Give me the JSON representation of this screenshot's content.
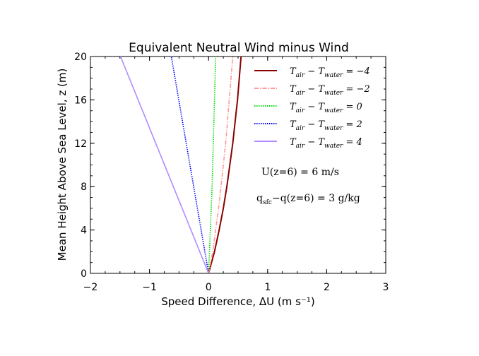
{
  "chart_data": {
    "type": "line",
    "title": "Equivalent Neutral Wind minus Wind",
    "xlabel": "Speed Difference, ΔU  (m s⁻¹)",
    "ylabel": "Mean Height Above Sea Level, z (m)",
    "xlim": [
      -2,
      3
    ],
    "ylim": [
      0,
      20
    ],
    "x_ticks": [
      "−2",
      "−1",
      "0",
      "1",
      "2",
      "3"
    ],
    "y_ticks": [
      "0",
      "4",
      "8",
      "12",
      "16",
      "20"
    ],
    "grid": false,
    "legend_position": "top-right",
    "series": [
      {
        "name": "T_air − T_water = −4",
        "color": "#8b0000",
        "style": "solid",
        "points": [
          [
            0,
            0
          ],
          [
            0.1,
            2
          ],
          [
            0.18,
            4
          ],
          [
            0.25,
            6
          ],
          [
            0.31,
            8
          ],
          [
            0.36,
            10
          ],
          [
            0.41,
            12
          ],
          [
            0.45,
            14
          ],
          [
            0.49,
            16
          ],
          [
            0.52,
            18
          ],
          [
            0.55,
            20
          ]
        ]
      },
      {
        "name": "T_air − T_water = −2",
        "color": "#ff9a9a",
        "style": "dashdot",
        "points": [
          [
            0,
            0
          ],
          [
            0.07,
            2
          ],
          [
            0.12,
            4
          ],
          [
            0.17,
            6
          ],
          [
            0.21,
            8
          ],
          [
            0.25,
            10
          ],
          [
            0.29,
            12
          ],
          [
            0.32,
            14
          ],
          [
            0.35,
            16
          ],
          [
            0.38,
            18
          ],
          [
            0.41,
            20
          ]
        ]
      },
      {
        "name": "T_air − T_water = 0",
        "color": "#00dd00",
        "style": "dotted",
        "points": [
          [
            0,
            0
          ],
          [
            0.03,
            4
          ],
          [
            0.06,
            8
          ],
          [
            0.08,
            12
          ],
          [
            0.1,
            16
          ],
          [
            0.12,
            20
          ]
        ]
      },
      {
        "name": "T_air − T_water = 2",
        "color": "#0000ee",
        "style": "dotted",
        "points": [
          [
            0,
            0
          ],
          [
            -0.63,
            20
          ]
        ]
      },
      {
        "name": "T_air − T_water = 4",
        "color": "#b08cff",
        "style": "solid",
        "points": [
          [
            0,
            0
          ],
          [
            -1.49,
            20
          ]
        ]
      }
    ],
    "legend": [
      {
        "prefix": "T",
        "sub1": "air",
        "mid": " − T",
        "sub2": "water",
        "suffix": " = −4"
      },
      {
        "prefix": "T",
        "sub1": "air",
        "mid": " − T",
        "sub2": "water",
        "suffix": " = −2"
      },
      {
        "prefix": "T",
        "sub1": "air",
        "mid": " − T",
        "sub2": "water",
        "suffix": " = 0"
      },
      {
        "prefix": "T",
        "sub1": "air",
        "mid": " − T",
        "sub2": "water",
        "suffix": " = 2"
      },
      {
        "prefix": "T",
        "sub1": "air",
        "mid": " − T",
        "sub2": "water",
        "suffix": " = 4"
      }
    ],
    "annotations": {
      "wind": "U(z=6)  =  6  m/s",
      "humidity_main": "q",
      "humidity_sub": "sfc",
      "humidity_rest": "−q(z=6)  =  3  g/kg"
    }
  }
}
